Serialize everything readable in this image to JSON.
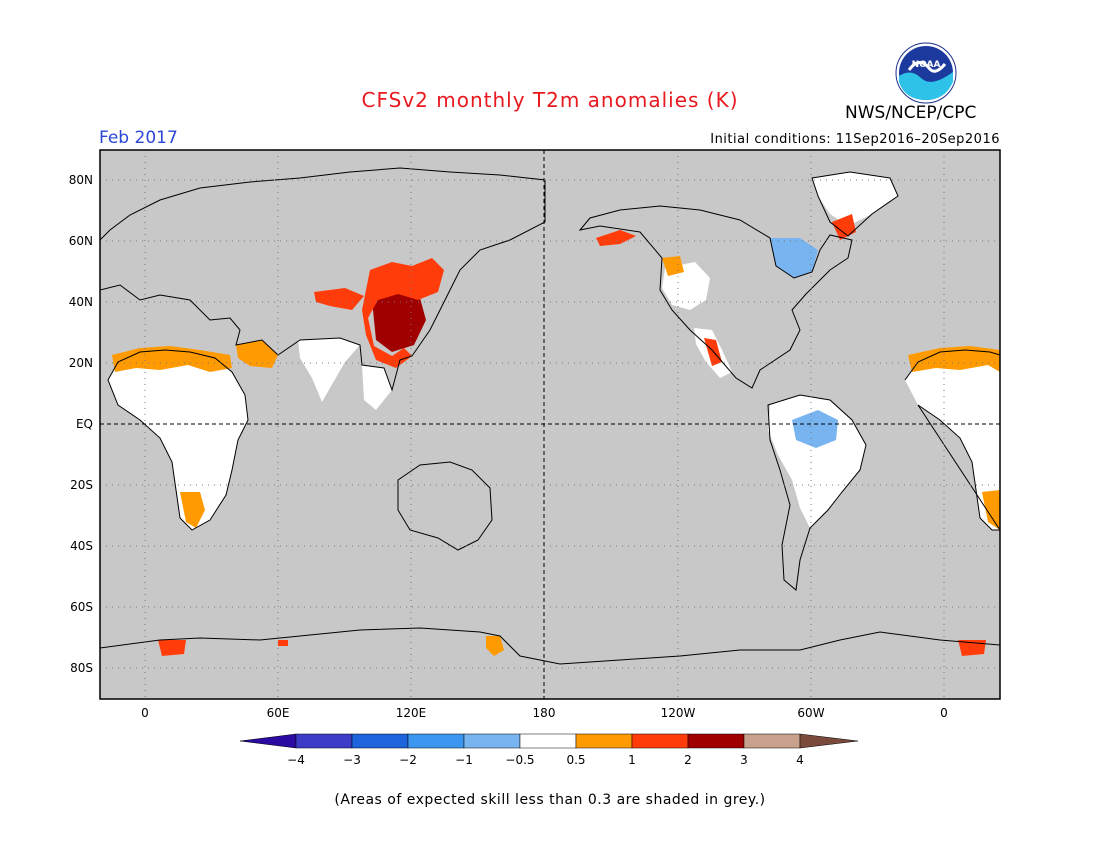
{
  "header": {
    "title": "CFSv2 monthly T2m anomalies (K)",
    "agency": "NWS/NCEP/CPC",
    "logo_text": "NOAA",
    "month": "Feb 2017",
    "initial_conditions": "Initial conditions: 11Sep2016–20Sep2016"
  },
  "map": {
    "lat_labels": [
      "80N",
      "60N",
      "40N",
      "20N",
      "EQ",
      "20S",
      "40S",
      "60S",
      "80S"
    ],
    "lon_labels": [
      "0",
      "60E",
      "120E",
      "180",
      "120W",
      "60W",
      "0"
    ],
    "skill_mask_color": "#c8c8c8"
  },
  "colorbar": {
    "labels": [
      "−4",
      "−3",
      "−2",
      "−1",
      "−0.5",
      "0.5",
      "1",
      "2",
      "3",
      "4"
    ],
    "colors": [
      "#2a0aa0",
      "#3c3cc8",
      "#1e64dc",
      "#3c96f0",
      "#78b4f0",
      "#ffffff",
      "#ff9a00",
      "#ff3c0a",
      "#a00000",
      "#c8a08c",
      "#7a4a3c"
    ]
  },
  "footnote": "(Areas of expected skill less than 0.3 are shaded in grey.)"
}
